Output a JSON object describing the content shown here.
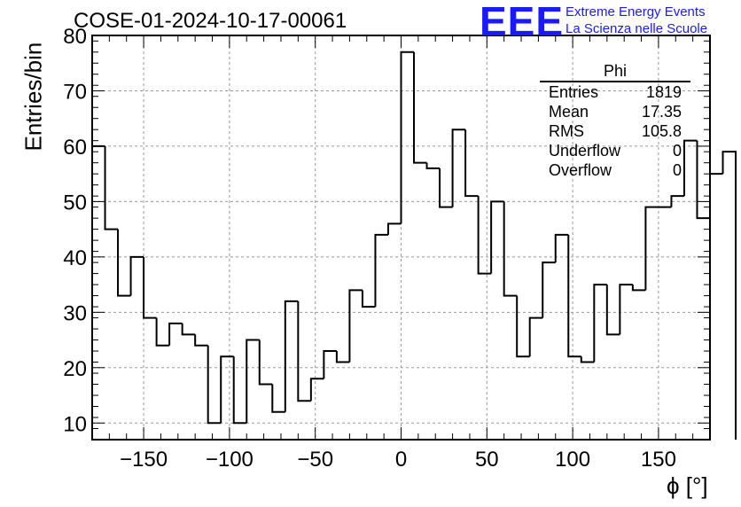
{
  "header": {
    "title": "COSE-01-2024-10-17-00061",
    "logo": "EEE",
    "logo_line1": "Extreme Energy Events",
    "logo_line2": "La Scienza nelle Scuole",
    "brand_color": "#1a1aff"
  },
  "stats_box": {
    "name": "Phi",
    "rows": [
      {
        "label": "Entries",
        "value": "1819"
      },
      {
        "label": "Mean",
        "value": "17.35"
      },
      {
        "label": "RMS",
        "value": "105.8"
      },
      {
        "label": "Underflow",
        "value": "0"
      },
      {
        "label": "Overflow",
        "value": "0"
      }
    ]
  },
  "chart_data": {
    "type": "bar",
    "style": "step-histogram",
    "title": "COSE-01-2024-10-17-00061",
    "xlabel": "ϕ [°]",
    "ylabel": "Entries/bin",
    "xlim": [
      -180,
      180
    ],
    "ylim": [
      7,
      80
    ],
    "grid": true,
    "bin_width": 7.5,
    "x_ticks": [
      -150,
      -100,
      -50,
      0,
      50,
      100,
      150
    ],
    "x_tick_labels": [
      "−150",
      "−100",
      "−50",
      "0",
      "50",
      "100",
      "150"
    ],
    "y_ticks": [
      10,
      20,
      30,
      40,
      50,
      60,
      70,
      80
    ],
    "y_tick_labels": [
      "10",
      "20",
      "30",
      "40",
      "50",
      "60",
      "70",
      "80"
    ],
    "bin_edges_start": -180,
    "values": [
      60,
      45,
      33,
      40,
      29,
      24,
      28,
      26,
      24,
      10,
      22,
      10,
      25,
      17,
      12,
      32,
      14,
      18,
      23,
      21,
      34,
      31,
      44,
      46,
      77,
      57,
      56,
      49,
      63,
      51,
      37,
      50,
      33,
      22,
      29,
      39,
      44,
      22,
      21,
      35,
      26,
      35,
      34,
      49,
      49,
      51,
      61,
      47,
      55,
      59
    ]
  }
}
